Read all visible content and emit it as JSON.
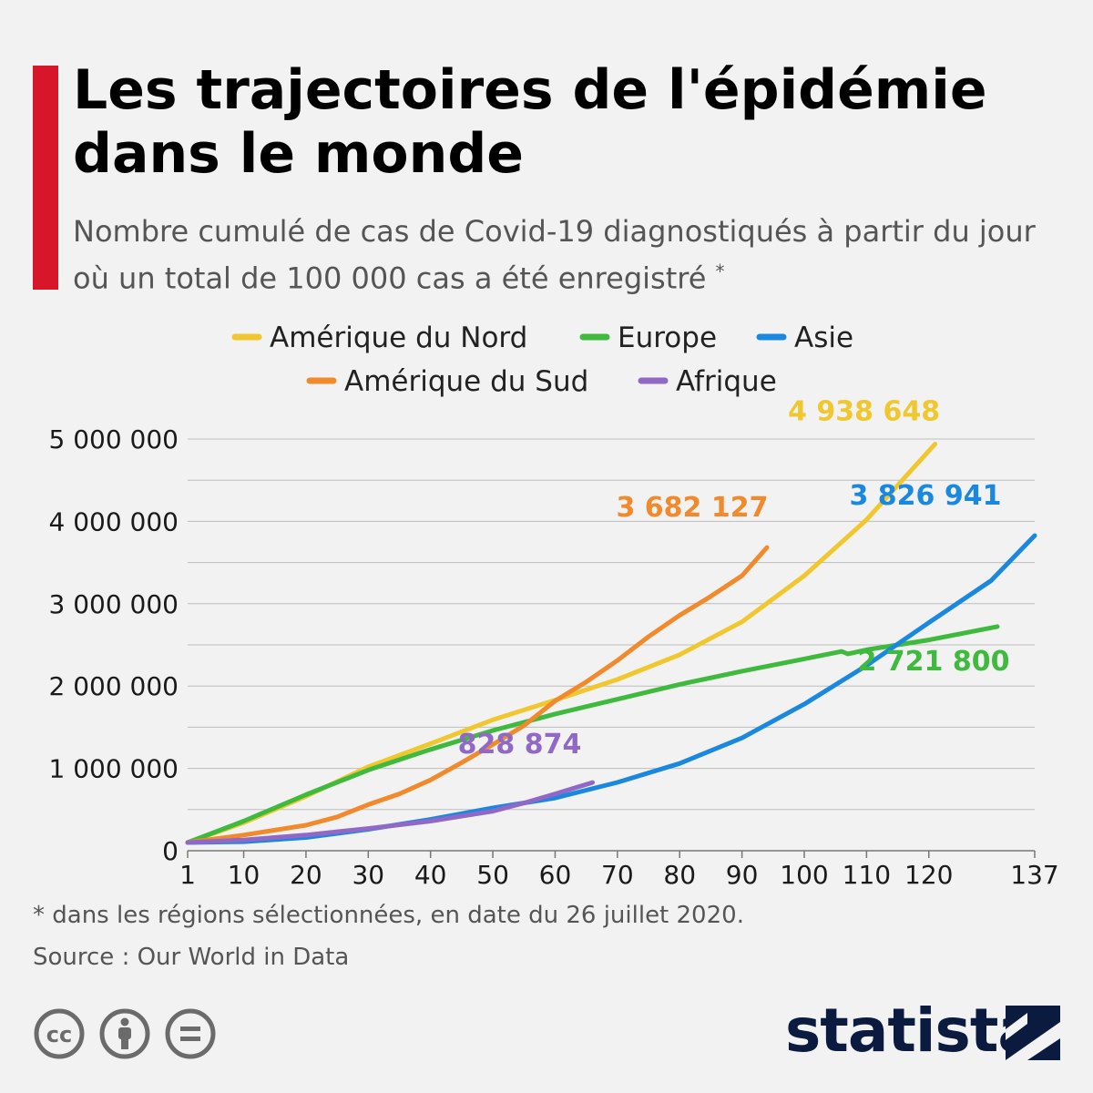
{
  "header": {
    "title": "Les trajectoires de l'épidémie dans le monde",
    "subtitle": "Nombre cumulé de cas de Covid-19 diagnostiqués à partir du jour où un total de 100 000 cas a été enregistré",
    "subtitle_mark": "*"
  },
  "colors": {
    "accent": "#d7162a",
    "north_america": "#f0c72e",
    "europe": "#3fb93e",
    "asia": "#1b88e0",
    "south_america": "#f08a2c",
    "africa": "#9069c7",
    "brand": "#0b1b3f"
  },
  "chart_data": {
    "type": "line",
    "xlabel": "",
    "ylabel": "",
    "xlim": [
      1,
      137
    ],
    "ylim": [
      0,
      5000000
    ],
    "x_ticks": [
      1,
      10,
      20,
      30,
      40,
      50,
      60,
      70,
      80,
      90,
      100,
      110,
      120,
      137
    ],
    "y_ticks": [
      0,
      1000000,
      2000000,
      3000000,
      4000000,
      5000000
    ],
    "y_tick_labels": [
      "0",
      "1 000 000",
      "2 000 000",
      "3 000 000",
      "4 000 000",
      "5 000 000"
    ],
    "grid": "horizontal",
    "legend_position": "top-center",
    "series": [
      {
        "name": "Amérique du Nord",
        "color": "#f0c72e",
        "end_label": "4 938 648",
        "points": [
          [
            1,
            100000
          ],
          [
            10,
            340000
          ],
          [
            20,
            660000
          ],
          [
            30,
            1020000
          ],
          [
            40,
            1300000
          ],
          [
            50,
            1590000
          ],
          [
            60,
            1830000
          ],
          [
            70,
            2080000
          ],
          [
            80,
            2380000
          ],
          [
            90,
            2780000
          ],
          [
            100,
            3340000
          ],
          [
            110,
            4020000
          ],
          [
            121,
            4938648
          ]
        ]
      },
      {
        "name": "Europe",
        "color": "#3fb93e",
        "end_label": "2 721 800",
        "points": [
          [
            1,
            100000
          ],
          [
            10,
            360000
          ],
          [
            20,
            680000
          ],
          [
            30,
            980000
          ],
          [
            40,
            1230000
          ],
          [
            50,
            1460000
          ],
          [
            60,
            1660000
          ],
          [
            70,
            1840000
          ],
          [
            80,
            2020000
          ],
          [
            90,
            2180000
          ],
          [
            100,
            2330000
          ],
          [
            106,
            2420000
          ],
          [
            107,
            2390000
          ],
          [
            110,
            2440000
          ],
          [
            120,
            2560000
          ],
          [
            131,
            2721800
          ]
        ]
      },
      {
        "name": "Asie",
        "color": "#1b88e0",
        "end_label": "3 826 941",
        "points": [
          [
            1,
            100000
          ],
          [
            10,
            110000
          ],
          [
            20,
            160000
          ],
          [
            30,
            260000
          ],
          [
            40,
            380000
          ],
          [
            50,
            520000
          ],
          [
            60,
            640000
          ],
          [
            70,
            830000
          ],
          [
            80,
            1060000
          ],
          [
            90,
            1370000
          ],
          [
            100,
            1780000
          ],
          [
            110,
            2250000
          ],
          [
            120,
            2770000
          ],
          [
            130,
            3280000
          ],
          [
            137,
            3826941
          ]
        ]
      },
      {
        "name": "Amérique du Sud",
        "color": "#f08a2c",
        "end_label": "3 682 127",
        "points": [
          [
            1,
            100000
          ],
          [
            10,
            190000
          ],
          [
            20,
            310000
          ],
          [
            25,
            410000
          ],
          [
            30,
            560000
          ],
          [
            35,
            690000
          ],
          [
            40,
            860000
          ],
          [
            45,
            1070000
          ],
          [
            50,
            1290000
          ],
          [
            55,
            1520000
          ],
          [
            60,
            1820000
          ],
          [
            65,
            2050000
          ],
          [
            70,
            2310000
          ],
          [
            75,
            2600000
          ],
          [
            80,
            2860000
          ],
          [
            85,
            3090000
          ],
          [
            90,
            3340000
          ],
          [
            94,
            3682127
          ]
        ]
      },
      {
        "name": "Afrique",
        "color": "#9069c7",
        "end_label": "828 874",
        "points": [
          [
            1,
            100000
          ],
          [
            10,
            130000
          ],
          [
            20,
            190000
          ],
          [
            30,
            270000
          ],
          [
            40,
            360000
          ],
          [
            50,
            480000
          ],
          [
            55,
            580000
          ],
          [
            60,
            690000
          ],
          [
            66,
            828874
          ]
        ]
      }
    ]
  },
  "footer": {
    "footnote": "* dans les régions sélectionnées, en date du 26 juillet 2020.",
    "source": "Source : Our World in Data",
    "brand": "statista",
    "license_icons": [
      "cc-icon",
      "attribution-icon",
      "no-derivatives-icon"
    ]
  }
}
